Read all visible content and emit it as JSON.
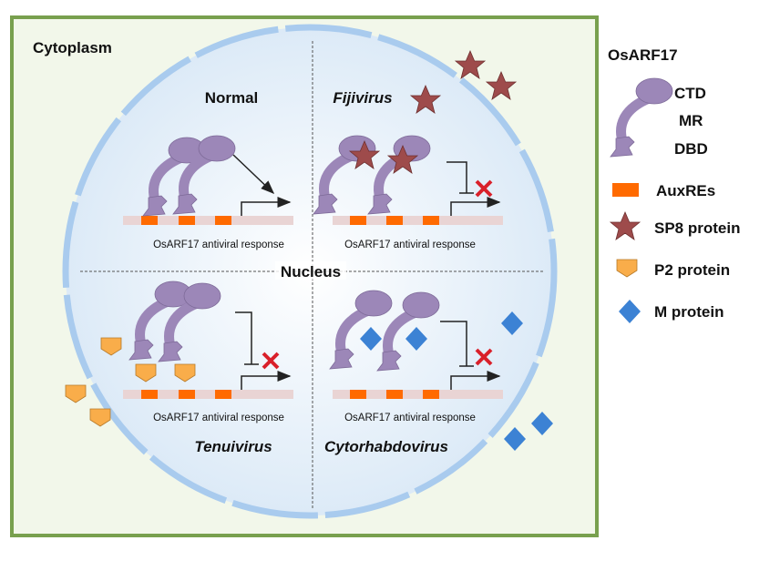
{
  "compartments": {
    "cytoplasm": "Cytoplasm",
    "nucleus": "Nucleus"
  },
  "quadrants": [
    {
      "title": "Normal",
      "caption": "OsARF17 antiviral response",
      "outcome": "activated"
    },
    {
      "title": "Fijivirus",
      "caption": "OsARF17 antiviral response",
      "outcome": "inhibited"
    },
    {
      "title": "Tenuivirus",
      "caption": "OsARF17 antiviral response",
      "outcome": "inhibited"
    },
    {
      "title": "Cytorhabdovirus",
      "caption": "OsARF17 antiviral response",
      "outcome": "inhibited"
    }
  ],
  "legend": {
    "title": "OsARF17",
    "domains": [
      "CTD",
      "MR",
      "DBD"
    ],
    "items": [
      {
        "label": "AuxREs",
        "icon": "orange-rectangle"
      },
      {
        "label": "SP8 protein",
        "icon": "star"
      },
      {
        "label": "P2 protein",
        "icon": "pentagon"
      },
      {
        "label": "M protein",
        "icon": "diamond"
      }
    ]
  },
  "colors": {
    "cell_border": "#78a04e",
    "cytoplasm": "#f2f7ea",
    "nuclear_envelope": "#a9cbee",
    "protein": "#9c87b8",
    "auxre": "#ff6a00",
    "dna": "#e9d4d4",
    "sp8": "#9e4b4b",
    "p2": "#f9ad4a",
    "m": "#3c82d4",
    "inhibit_x": "#d9202a"
  }
}
